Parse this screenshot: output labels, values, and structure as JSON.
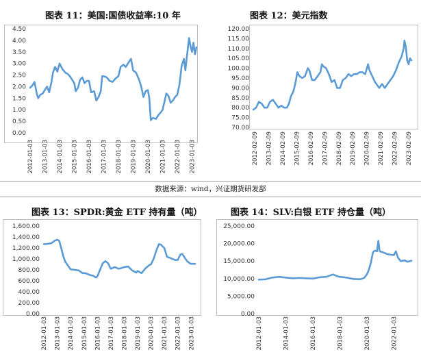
{
  "titles": {
    "c11": "图表 11：美国:国债收益率:10 年",
    "c12": "图表 12：美元指数",
    "c13": "图表 13：SPDR:黄金 ETF 持有量（吨）",
    "c14": "图表 14：SLV:白银 ETF 持仓量（吨）"
  },
  "source_note": "数据来源：wind，兴证期货研发部",
  "colors": {
    "line": "#5b9bd5",
    "frame": "#bdbdbd",
    "text": "#333333"
  },
  "chart_data": [
    {
      "id": "c11",
      "type": "line",
      "ylim": [
        0,
        4.5
      ],
      "yticks": [
        "0.00",
        "0.50",
        "1.00",
        "1.50",
        "2.00",
        "2.50",
        "3.00",
        "3.50",
        "4.00",
        "4.50"
      ],
      "xticks": [
        "2012-01-03",
        "2013-01-03",
        "2014-01-03",
        "2015-01-03",
        "2016-01-03",
        "2017-01-03",
        "2018-01-03",
        "2019-01-03",
        "2020-01-03",
        "2021-01-03",
        "2022-01-03",
        "2023-01-03"
      ],
      "xrange": [
        2012.0,
        2023.35
      ],
      "series": [
        {
          "points": [
            [
              2012.0,
              1.95
            ],
            [
              2012.15,
              2.05
            ],
            [
              2012.3,
              2.2
            ],
            [
              2012.45,
              1.7
            ],
            [
              2012.55,
              1.5
            ],
            [
              2012.7,
              1.65
            ],
            [
              2012.85,
              1.7
            ],
            [
              2013.0,
              1.85
            ],
            [
              2013.15,
              2.0
            ],
            [
              2013.3,
              1.75
            ],
            [
              2013.45,
              2.2
            ],
            [
              2013.55,
              2.6
            ],
            [
              2013.7,
              2.85
            ],
            [
              2013.85,
              2.65
            ],
            [
              2014.0,
              3.0
            ],
            [
              2014.2,
              2.75
            ],
            [
              2014.4,
              2.6
            ],
            [
              2014.55,
              2.55
            ],
            [
              2014.7,
              2.45
            ],
            [
              2014.85,
              2.3
            ],
            [
              2015.0,
              2.15
            ],
            [
              2015.1,
              1.8
            ],
            [
              2015.25,
              1.95
            ],
            [
              2015.4,
              2.3
            ],
            [
              2015.55,
              2.4
            ],
            [
              2015.7,
              2.15
            ],
            [
              2015.85,
              2.25
            ],
            [
              2016.0,
              2.25
            ],
            [
              2016.15,
              1.75
            ],
            [
              2016.35,
              1.8
            ],
            [
              2016.5,
              1.4
            ],
            [
              2016.65,
              1.55
            ],
            [
              2016.8,
              1.8
            ],
            [
              2016.9,
              2.45
            ],
            [
              2017.0,
              2.45
            ],
            [
              2017.2,
              2.4
            ],
            [
              2017.4,
              2.25
            ],
            [
              2017.6,
              2.2
            ],
            [
              2017.8,
              2.35
            ],
            [
              2018.0,
              2.45
            ],
            [
              2018.15,
              2.85
            ],
            [
              2018.35,
              2.95
            ],
            [
              2018.5,
              2.85
            ],
            [
              2018.7,
              3.05
            ],
            [
              2018.85,
              3.2
            ],
            [
              2019.0,
              2.7
            ],
            [
              2019.2,
              2.6
            ],
            [
              2019.4,
              2.3
            ],
            [
              2019.55,
              2.0
            ],
            [
              2019.7,
              1.55
            ],
            [
              2019.85,
              1.8
            ],
            [
              2020.0,
              1.85
            ],
            [
              2020.1,
              1.5
            ],
            [
              2020.2,
              0.55
            ],
            [
              2020.35,
              0.65
            ],
            [
              2020.55,
              0.6
            ],
            [
              2020.75,
              0.8
            ],
            [
              2020.9,
              0.9
            ],
            [
              2021.0,
              1.0
            ],
            [
              2021.15,
              1.4
            ],
            [
              2021.25,
              1.7
            ],
            [
              2021.4,
              1.6
            ],
            [
              2021.55,
              1.3
            ],
            [
              2021.7,
              1.4
            ],
            [
              2021.85,
              1.55
            ],
            [
              2022.0,
              1.65
            ],
            [
              2022.15,
              2.1
            ],
            [
              2022.3,
              2.9
            ],
            [
              2022.45,
              3.2
            ],
            [
              2022.55,
              2.7
            ],
            [
              2022.65,
              3.3
            ],
            [
              2022.8,
              4.1
            ],
            [
              2022.9,
              3.75
            ],
            [
              2023.0,
              3.5
            ],
            [
              2023.1,
              3.9
            ],
            [
              2023.2,
              3.4
            ],
            [
              2023.3,
              3.7
            ]
          ]
        }
      ]
    },
    {
      "id": "c12",
      "type": "line",
      "ylim": [
        70,
        120
      ],
      "yticks": [
        "70.00",
        "75.00",
        "80.00",
        "85.00",
        "90.00",
        "95.00",
        "100.00",
        "105.00",
        "110.00",
        "115.00",
        "120.00"
      ],
      "xticks": [
        "2012-02-09",
        "2013-02-09",
        "2014-02-09",
        "2015-02-09",
        "2016-02-09",
        "2017-02-09",
        "2018-02-09",
        "2019-02-09",
        "2020-02-09",
        "2021-02-09",
        "2022-02-09",
        "2023-02-09"
      ],
      "xrange": [
        2012.0,
        2023.35
      ],
      "series": [
        {
          "points": [
            [
              2012.0,
              79
            ],
            [
              2012.2,
              80
            ],
            [
              2012.4,
              83
            ],
            [
              2012.6,
              82
            ],
            [
              2012.8,
              80
            ],
            [
              2013.0,
              80
            ],
            [
              2013.2,
              83
            ],
            [
              2013.4,
              84
            ],
            [
              2013.6,
              82
            ],
            [
              2013.8,
              80
            ],
            [
              2014.0,
              81
            ],
            [
              2014.2,
              80
            ],
            [
              2014.4,
              80
            ],
            [
              2014.55,
              82
            ],
            [
              2014.7,
              86
            ],
            [
              2014.85,
              88
            ],
            [
              2015.0,
              92
            ],
            [
              2015.15,
              98
            ],
            [
              2015.3,
              96
            ],
            [
              2015.5,
              95
            ],
            [
              2015.7,
              96
            ],
            [
              2015.9,
              100
            ],
            [
              2016.0,
              99
            ],
            [
              2016.2,
              94
            ],
            [
              2016.4,
              94
            ],
            [
              2016.6,
              96
            ],
            [
              2016.8,
              98
            ],
            [
              2016.9,
              102
            ],
            [
              2017.0,
              101
            ],
            [
              2017.2,
              100
            ],
            [
              2017.4,
              97
            ],
            [
              2017.6,
              93
            ],
            [
              2017.8,
              94
            ],
            [
              2018.0,
              90
            ],
            [
              2018.2,
              90
            ],
            [
              2018.4,
              94
            ],
            [
              2018.6,
              95
            ],
            [
              2018.8,
              97
            ],
            [
              2019.0,
              96
            ],
            [
              2019.2,
              97
            ],
            [
              2019.4,
              97
            ],
            [
              2019.6,
              98
            ],
            [
              2019.8,
              98
            ],
            [
              2020.0,
              97
            ],
            [
              2020.2,
              102
            ],
            [
              2020.3,
              99
            ],
            [
              2020.5,
              96
            ],
            [
              2020.7,
              93
            ],
            [
              2020.9,
              91
            ],
            [
              2021.0,
              90
            ],
            [
              2021.2,
              92
            ],
            [
              2021.4,
              90
            ],
            [
              2021.6,
              92
            ],
            [
              2021.8,
              94
            ],
            [
              2022.0,
              96
            ],
            [
              2022.2,
              99
            ],
            [
              2022.4,
              103
            ],
            [
              2022.6,
              106
            ],
            [
              2022.75,
              110
            ],
            [
              2022.8,
              114
            ],
            [
              2022.9,
              111
            ],
            [
              2023.0,
              104
            ],
            [
              2023.1,
              102
            ],
            [
              2023.2,
              105
            ],
            [
              2023.3,
              104
            ]
          ]
        }
      ]
    },
    {
      "id": "c13",
      "type": "line",
      "ylim": [
        0,
        1600
      ],
      "yticks": [
        "0.00",
        "200.00",
        "400.00",
        "600.00",
        "800.00",
        "1,000.00",
        "1,200.00",
        "1,400.00",
        "1,600.00"
      ],
      "xticks": [
        "2012-01-03",
        "2013-01-03",
        "2014-01-03",
        "2015-01-03",
        "2016-01-03",
        "2017-01-03",
        "2018-01-03",
        "2019-01-03",
        "2020-01-03",
        "2021-01-03",
        "2022-01-03",
        "2023-01-03"
      ],
      "xrange": [
        2012.0,
        2023.35
      ],
      "series": [
        {
          "points": [
            [
              2012.0,
              1270
            ],
            [
              2012.3,
              1275
            ],
            [
              2012.6,
              1290
            ],
            [
              2012.8,
              1330
            ],
            [
              2013.0,
              1350
            ],
            [
              2013.15,
              1330
            ],
            [
              2013.3,
              1200
            ],
            [
              2013.45,
              1050
            ],
            [
              2013.6,
              950
            ],
            [
              2013.8,
              880
            ],
            [
              2014.0,
              810
            ],
            [
              2014.3,
              800
            ],
            [
              2014.6,
              790
            ],
            [
              2014.9,
              740
            ],
            [
              2015.1,
              740
            ],
            [
              2015.4,
              710
            ],
            [
              2015.7,
              690
            ],
            [
              2015.9,
              660
            ],
            [
              2016.0,
              680
            ],
            [
              2016.2,
              800
            ],
            [
              2016.4,
              920
            ],
            [
              2016.6,
              960
            ],
            [
              2016.8,
              920
            ],
            [
              2017.0,
              820
            ],
            [
              2017.3,
              850
            ],
            [
              2017.6,
              820
            ],
            [
              2017.9,
              840
            ],
            [
              2018.0,
              850
            ],
            [
              2018.3,
              860
            ],
            [
              2018.6,
              790
            ],
            [
              2018.9,
              750
            ],
            [
              2019.0,
              780
            ],
            [
              2019.3,
              740
            ],
            [
              2019.6,
              830
            ],
            [
              2019.9,
              890
            ],
            [
              2020.0,
              900
            ],
            [
              2020.2,
              1000
            ],
            [
              2020.4,
              1150
            ],
            [
              2020.6,
              1270
            ],
            [
              2020.75,
              1260
            ],
            [
              2020.9,
              1220
            ],
            [
              2021.0,
              1200
            ],
            [
              2021.2,
              1040
            ],
            [
              2021.4,
              1020
            ],
            [
              2021.6,
              1000
            ],
            [
              2021.8,
              980
            ],
            [
              2022.0,
              980
            ],
            [
              2022.2,
              1080
            ],
            [
              2022.35,
              1090
            ],
            [
              2022.5,
              1030
            ],
            [
              2022.7,
              960
            ],
            [
              2022.9,
              920
            ],
            [
              2023.0,
              910
            ],
            [
              2023.3,
              910
            ]
          ]
        }
      ]
    },
    {
      "id": "c14",
      "type": "line",
      "ylim": [
        0,
        25000
      ],
      "yticks": [
        "0.00",
        "5,000.00",
        "10,000.00",
        "15,000.00",
        "20,000.00",
        "25,000.00"
      ],
      "xticks": [
        "2012-01-03",
        "2014-01-03",
        "2016-01-03",
        "2018-01-03",
        "2020-01-03",
        "2022-01-03"
      ],
      "xrange": [
        2012.0,
        2023.35
      ],
      "series": [
        {
          "points": [
            [
              2012.0,
              9700
            ],
            [
              2012.5,
              9800
            ],
            [
              2013.0,
              10300
            ],
            [
              2013.5,
              10500
            ],
            [
              2014.0,
              10300
            ],
            [
              2014.5,
              10100
            ],
            [
              2015.0,
              10200
            ],
            [
              2015.5,
              10100
            ],
            [
              2016.0,
              10000
            ],
            [
              2016.5,
              10400
            ],
            [
              2017.0,
              10500
            ],
            [
              2017.5,
              11200
            ],
            [
              2017.8,
              10700
            ],
            [
              2018.0,
              10500
            ],
            [
              2018.5,
              10300
            ],
            [
              2019.0,
              9900
            ],
            [
              2019.5,
              9800
            ],
            [
              2019.8,
              10200
            ],
            [
              2020.0,
              11200
            ],
            [
              2020.15,
              12500
            ],
            [
              2020.3,
              14500
            ],
            [
              2020.45,
              17500
            ],
            [
              2020.6,
              18000
            ],
            [
              2020.75,
              17800
            ],
            [
              2020.85,
              20800
            ],
            [
              2020.95,
              17800
            ],
            [
              2021.2,
              17500
            ],
            [
              2021.5,
              17000
            ],
            [
              2021.8,
              16800
            ],
            [
              2022.0,
              16700
            ],
            [
              2022.15,
              17800
            ],
            [
              2022.3,
              16000
            ],
            [
              2022.5,
              15000
            ],
            [
              2022.8,
              15200
            ],
            [
              2023.0,
              14800
            ],
            [
              2023.3,
              15100
            ]
          ]
        }
      ]
    }
  ]
}
